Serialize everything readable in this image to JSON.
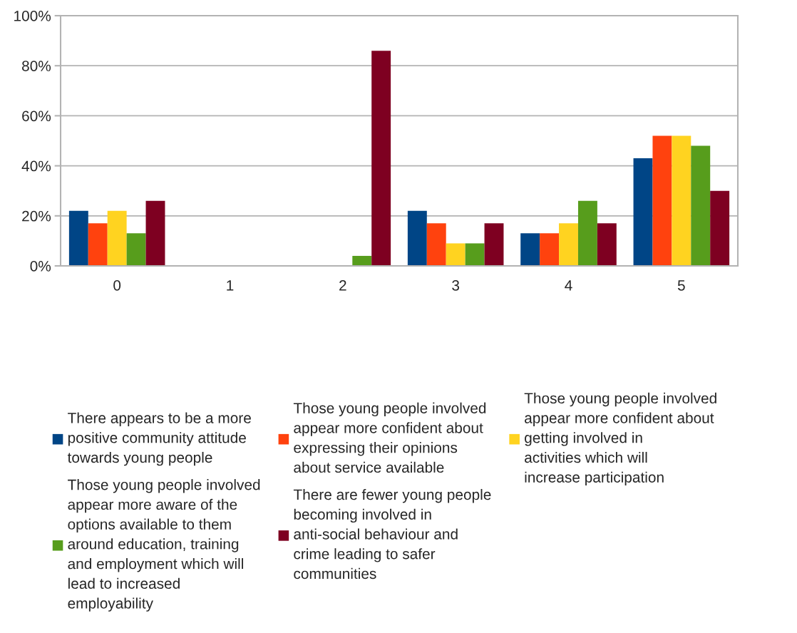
{
  "chart_data": {
    "type": "bar",
    "categories": [
      "0",
      "1",
      "2",
      "3",
      "4",
      "5"
    ],
    "series": [
      {
        "name": "There appears to be a more positive community attitude towards young people",
        "color": "#004586",
        "values": [
          22,
          0,
          0,
          22,
          13,
          43
        ]
      },
      {
        "name": "Those young people involved appear more confident about expressing their opinions about service available",
        "color": "#ff420e",
        "values": [
          17,
          0,
          0,
          17,
          13,
          52
        ]
      },
      {
        "name": "Those young people involved appear more confident about getting involved in activities which will increase participation",
        "color": "#ffd320",
        "values": [
          22,
          0,
          0,
          9,
          17,
          52
        ]
      },
      {
        "name": "Those young people involved appear more aware of the options available to them around education, training and employment which will lead to increased employability",
        "color": "#579d1c",
        "values": [
          13,
          0,
          4,
          9,
          26,
          48
        ]
      },
      {
        "name": "There are fewer young people becoming involved in anti-social behaviour and crime leading to safer communities",
        "color": "#7e0021",
        "values": [
          26,
          0,
          86,
          17,
          17,
          30
        ]
      }
    ],
    "ylim": [
      0,
      100
    ],
    "yticks": [
      {
        "value": 0,
        "label": "0%"
      },
      {
        "value": 20,
        "label": "20%"
      },
      {
        "value": 40,
        "label": "40%"
      },
      {
        "value": 60,
        "label": "60%"
      },
      {
        "value": 80,
        "label": "80%"
      },
      {
        "value": 100,
        "label": "100%"
      }
    ],
    "grid": "y",
    "legend": "bottom"
  }
}
